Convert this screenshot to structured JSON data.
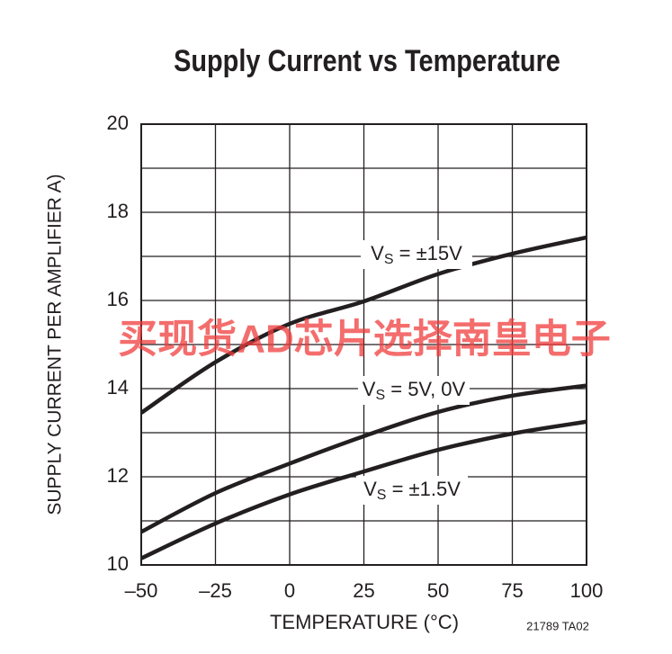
{
  "chart_data": {
    "type": "line",
    "title": "Supply Current vs Temperature",
    "x_label": "TEMPERATURE (°C)",
    "y_label": "SUPPLY CURRENT PER AMPLIFIER A)",
    "note": "21789 TA02",
    "watermark": "买现货AD芯片选择南皇电子",
    "x": [
      -50,
      -25,
      0,
      25,
      50,
      75,
      100
    ],
    "xlim": [
      -50,
      100
    ],
    "xticks": [
      {
        "value": -50,
        "label": "–50"
      },
      {
        "value": -25,
        "label": "–25"
      },
      0,
      25,
      50,
      75,
      100
    ],
    "ylim": [
      10,
      20
    ],
    "yticks": [
      10,
      12,
      14,
      16,
      18,
      20
    ],
    "y_minor_ticks": [
      11,
      13,
      15,
      17,
      19
    ],
    "grid": true,
    "series": [
      {
        "label": {
          "main": "V",
          "sub": "S",
          "rest": " = ±15V"
        },
        "color": "#231f20",
        "values": [
          13.45,
          14.6,
          15.47,
          15.98,
          16.6,
          17.06,
          17.43
        ]
      },
      {
        "label": {
          "main": "V",
          "sub": "S",
          "rest": " = 5V, 0V"
        },
        "color": "#231f20",
        "values": [
          10.75,
          11.63,
          12.3,
          12.92,
          13.47,
          13.84,
          14.07
        ]
      },
      {
        "label": {
          "main": "V",
          "sub": "S",
          "rest": " = ±1.5V"
        },
        "color": "#231f20",
        "values": [
          10.15,
          10.94,
          11.6,
          12.12,
          12.61,
          12.98,
          13.25
        ]
      }
    ]
  }
}
